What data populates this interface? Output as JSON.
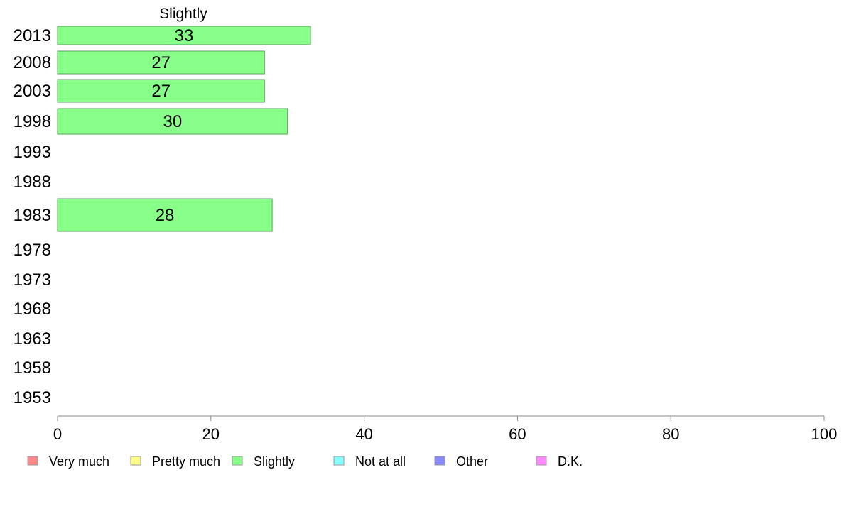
{
  "chart_data": {
    "type": "bar",
    "orientation": "horizontal",
    "title": "Slightly",
    "categories": [
      "2013",
      "2008",
      "2003",
      "1998",
      "1993",
      "1988",
      "1983",
      "1978",
      "1973",
      "1968",
      "1963",
      "1958",
      "1953"
    ],
    "series": [
      {
        "name": "Slightly",
        "color": "#88ff88",
        "values": [
          33,
          27,
          27,
          30,
          null,
          null,
          28,
          null,
          null,
          null,
          null,
          null,
          null
        ],
        "labels": [
          "33",
          "27",
          "27",
          "30",
          "",
          "",
          "28",
          "",
          "",
          "",
          "",
          "",
          ""
        ]
      }
    ],
    "xlim": [
      0,
      100
    ],
    "xticks": [
      "0",
      "20",
      "40",
      "60",
      "80",
      "100"
    ],
    "grid": false,
    "legend_position": "bottom",
    "legend": [
      {
        "label": "Very much",
        "color": "#ff8888"
      },
      {
        "label": "Pretty much",
        "color": "#ffff88"
      },
      {
        "label": "Slightly",
        "color": "#88ff88"
      },
      {
        "label": "Not at all",
        "color": "#88ffff"
      },
      {
        "label": "Other",
        "color": "#8888ff"
      },
      {
        "label": "D.K.",
        "color": "#ff88ff"
      }
    ]
  }
}
